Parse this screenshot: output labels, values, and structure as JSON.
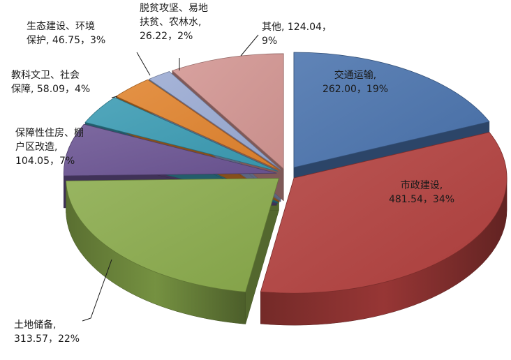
{
  "chart_data": {
    "type": "pie",
    "style": "3d-exploded",
    "title": "",
    "unit": "",
    "slices": [
      {
        "id": "transport",
        "name": "交通运输",
        "value": 262.0,
        "percent": "19%",
        "color": "#4a73ad",
        "label_lines": [
          "交通运输,",
          "262.00，19%"
        ]
      },
      {
        "id": "municipal",
        "name": "市政建设",
        "value": 481.54,
        "percent": "34%",
        "color": "#b2403e",
        "label_lines": [
          "市政建设,",
          "481.54，34%"
        ]
      },
      {
        "id": "land",
        "name": "土地储备",
        "value": 313.57,
        "percent": "22%",
        "color": "#8aab4c",
        "label_lines": [
          "土地储备,",
          "313.57，22%"
        ]
      },
      {
        "id": "housing",
        "name": "保障性住房、棚户区改造",
        "value": 104.05,
        "percent": "7%",
        "color": "#6b5493",
        "label_lines": [
          "保障性住房、棚",
          "户区改造,",
          "104.05，7%"
        ]
      },
      {
        "id": "education",
        "name": "教科文卫、社会保障",
        "value": 58.09,
        "percent": "4%",
        "color": "#3a9bb3",
        "label_lines": [
          "教科文卫、社会",
          "保障, 58.09，4%"
        ]
      },
      {
        "id": "ecology",
        "name": "生态建设、环境保护",
        "value": 46.75,
        "percent": "3%",
        "color": "#e0832d",
        "label_lines": [
          "生态建设、环境",
          "保护, 46.75，3%"
        ]
      },
      {
        "id": "poverty",
        "name": "脱贫攻坚、易地扶贫、农林水",
        "value": 26.22,
        "percent": "2%",
        "color": "#9aaad3",
        "label_lines": [
          "脱贫攻坚、易地",
          "扶贫、农林水,",
          "26.22，2%"
        ]
      },
      {
        "id": "other",
        "name": "其他",
        "value": 124.04,
        "percent": "9%",
        "color": "#d39592",
        "label_lines": [
          "其他, 124.04，",
          "9%"
        ]
      }
    ]
  }
}
